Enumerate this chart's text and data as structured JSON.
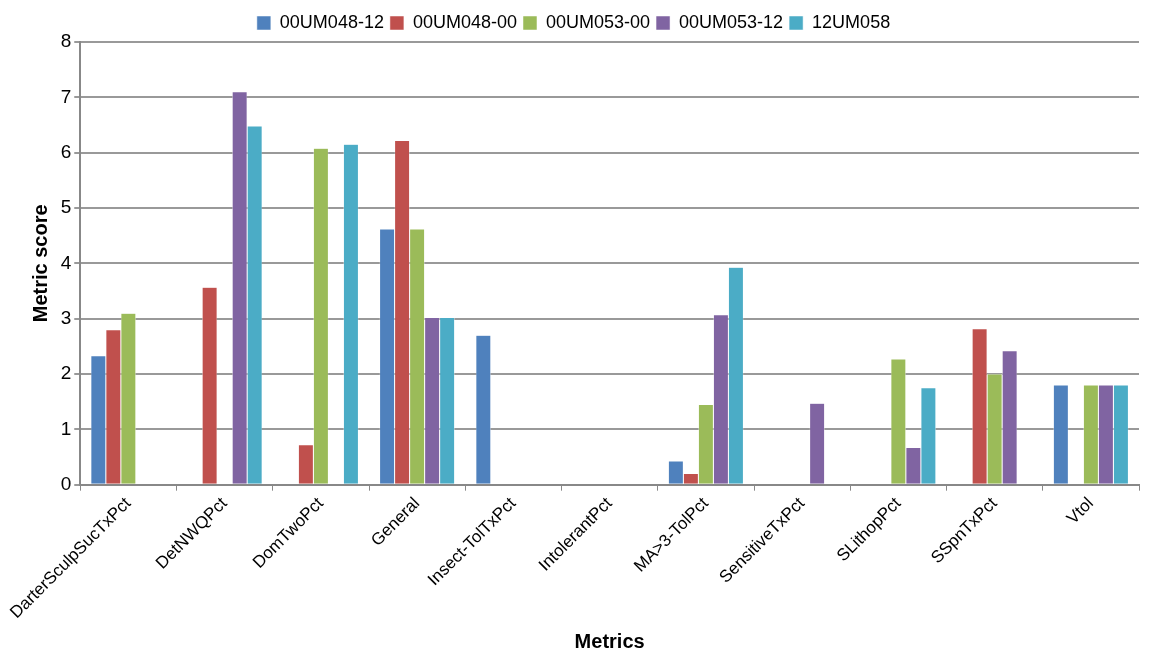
{
  "chart_data": {
    "type": "bar",
    "xlabel": "Metrics",
    "ylabel": "Metric score",
    "categories": [
      "DarterSculpSucTxPct",
      "DetNWQPct",
      "DomTwoPct",
      "General",
      "Insect-TolTxPct",
      "IntolerantPct",
      "MA>3-TolPct",
      "SensitiveTxPct",
      "SLithopPct",
      "SSpnTxPct",
      "Vtol"
    ],
    "series": [
      {
        "name": "00UM048-12",
        "color": "#4f81bd",
        "values": [
          2.33,
          null,
          null,
          4.62,
          2.7,
          null,
          0.43,
          null,
          null,
          null,
          1.8
        ]
      },
      {
        "name": "00UM048-00",
        "color": "#c0504d",
        "values": [
          2.8,
          3.57,
          0.72,
          6.22,
          null,
          null,
          0.2,
          null,
          null,
          2.82,
          null
        ]
      },
      {
        "name": "00UM053-00",
        "color": "#9bbb59",
        "values": [
          3.1,
          null,
          6.08,
          4.62,
          null,
          null,
          1.45,
          null,
          2.27,
          2.0,
          1.8
        ]
      },
      {
        "name": "00UM053-12",
        "color": "#8064a2",
        "values": [
          null,
          7.1,
          null,
          3.02,
          null,
          null,
          3.07,
          1.47,
          0.67,
          2.42,
          1.8
        ]
      },
      {
        "name": "12UM058",
        "color": "#4bacc6",
        "values": [
          null,
          6.48,
          6.15,
          3.02,
          null,
          null,
          3.93,
          null,
          1.75,
          null,
          1.8
        ]
      }
    ],
    "ylim": [
      0,
      8
    ],
    "yticks": [
      0,
      1,
      2,
      3,
      4,
      5,
      6,
      7,
      8
    ],
    "grid": "y",
    "legend": "top"
  }
}
